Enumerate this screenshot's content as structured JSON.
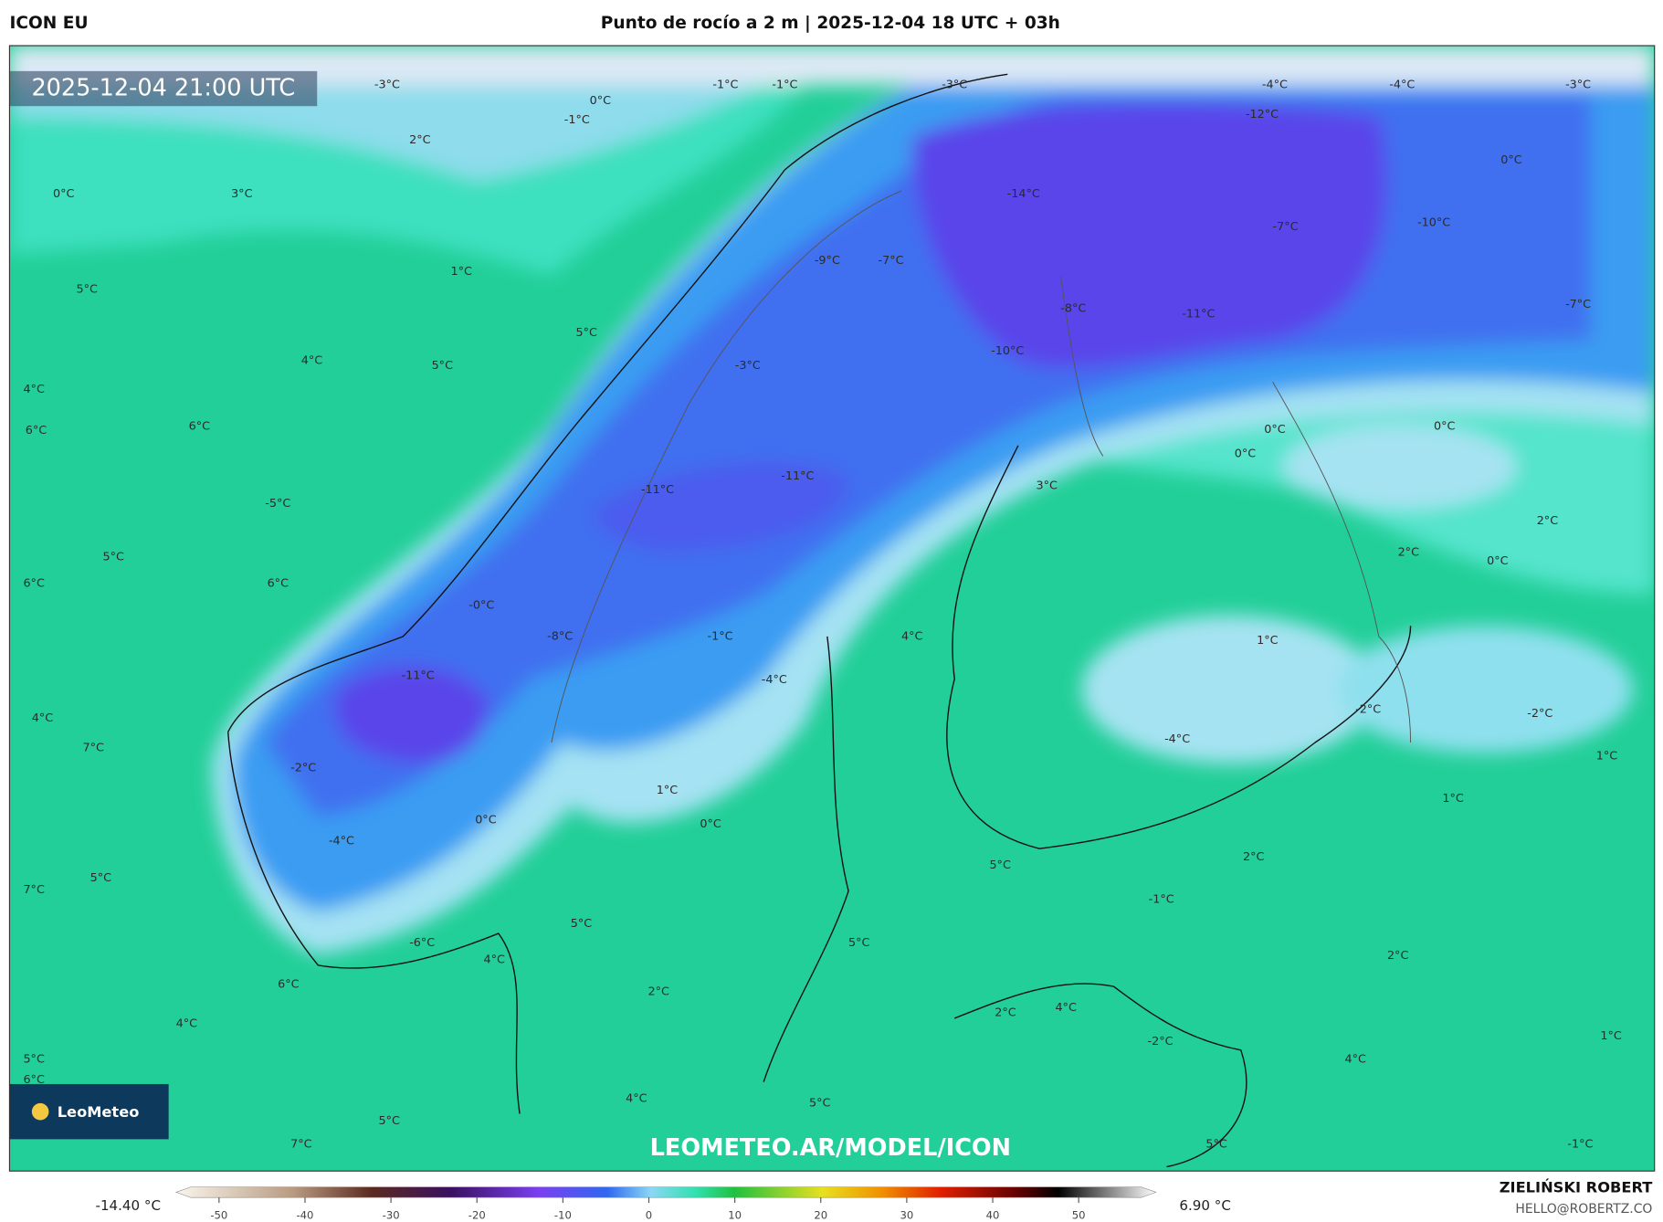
{
  "header": {
    "model": "ICON EU",
    "title": "Punto de rocío a 2 m | 2025-12-04 18 UTC + 03h"
  },
  "map": {
    "timestamp": "2025-12-04 21:00 UTC",
    "watermark": "LEOMETEO.AR/MODEL/ICON",
    "logo": "LeoMeteo",
    "contour_labels": [
      "-3°C",
      "-1°C",
      "-1°C",
      "-3°C",
      "-4°C",
      "-4°C",
      "-3°C",
      "0°C",
      "-1°C",
      "2°C",
      "0°C",
      "3°C",
      "-12°C",
      "-14°C",
      "0°C",
      "-7°C",
      "-10°C",
      "-9°C",
      "-7°C",
      "1°C",
      "5°C",
      "-8°C",
      "-11°C",
      "-7°C",
      "5°C",
      "-10°C",
      "4°C",
      "5°C",
      "-3°C",
      "4°C",
      "6°C",
      "6°C",
      "0°C",
      "0°C",
      "0°C",
      "-11°C",
      "-11°C",
      "3°C",
      "-5°C",
      "2°C",
      "5°C",
      "2°C",
      "0°C",
      "6°C",
      "6°C",
      "-0°C",
      "-8°C",
      "-1°C",
      "4°C",
      "1°C",
      "-11°C",
      "-4°C",
      "-2°C",
      "-2°C",
      "4°C",
      "7°C",
      "-4°C",
      "1°C",
      "-2°C",
      "1°C",
      "1°C",
      "0°C",
      "0°C",
      "-4°C",
      "5°C",
      "2°C",
      "7°C",
      "5°C",
      "-1°C",
      "5°C",
      "-6°C",
      "5°C",
      "4°C",
      "2°C",
      "6°C",
      "2°C",
      "2°C",
      "4°C",
      "4°C",
      "-2°C",
      "1°C",
      "5°C",
      "4°C",
      "6°C",
      "4°C",
      "5°C",
      "5°C",
      "7°C",
      "5°C",
      "-1°C"
    ]
  },
  "colorbar": {
    "min_label": "-14.40 °C",
    "max_label": "6.90 °C",
    "lim": [
      -55,
      59
    ],
    "ticks": [
      -50,
      -40,
      -30,
      -20,
      -10,
      0,
      10,
      20,
      30,
      40,
      50
    ]
  },
  "credits": {
    "author": "ZIELIŃSKI ROBERT",
    "email": "HELLO@ROBERTZ.CO"
  }
}
